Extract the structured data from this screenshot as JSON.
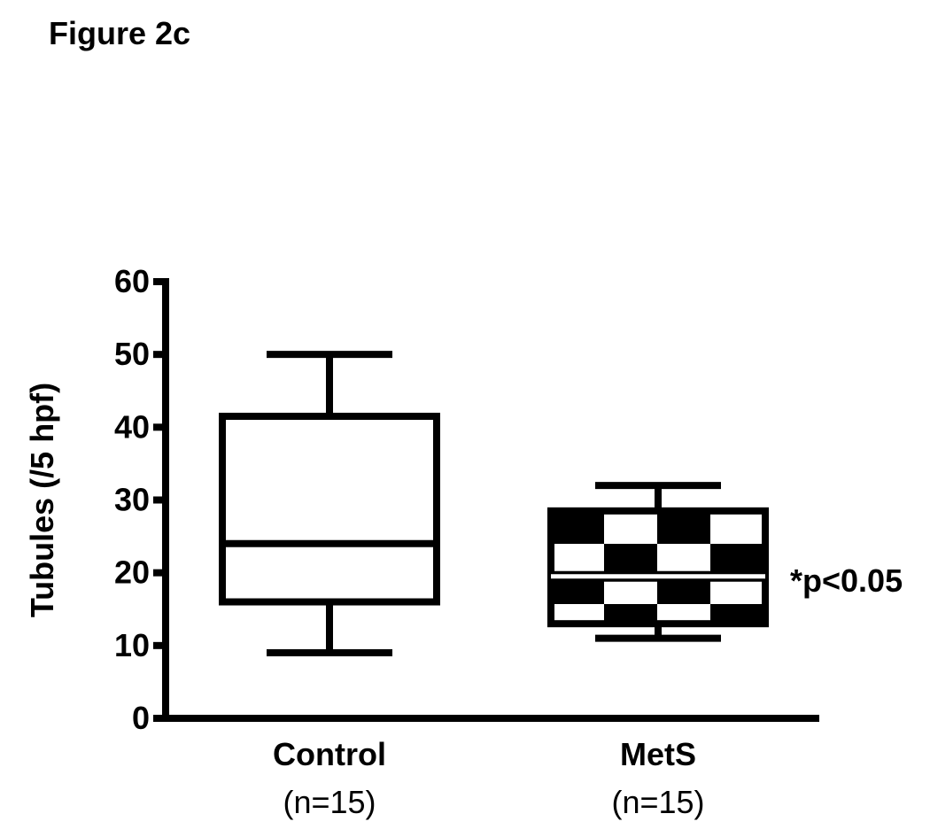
{
  "figure_label": "Figure 2c",
  "significance_label": "*p<0.05",
  "colors": {
    "ink": "#000000",
    "paper": "#ffffff"
  },
  "chart_data": {
    "type": "box",
    "title": "",
    "xlabel": "",
    "ylabel": "Tubules (/5 hpf)",
    "ylim": [
      0,
      60
    ],
    "yticks": [
      0,
      10,
      20,
      30,
      40,
      50,
      60
    ],
    "grid": false,
    "legend": "none",
    "categories": [
      "Control",
      "MetS"
    ],
    "sample_sizes": [
      "(n=15)",
      "(n=15)"
    ],
    "boxes": [
      {
        "category": "Control",
        "min": 9,
        "q1": 16,
        "median": 24,
        "q3": 41.5,
        "max": 50,
        "fill": "plain"
      },
      {
        "category": "MetS",
        "min": 11,
        "q1": 13,
        "median": 19.5,
        "q3": 28.5,
        "max": 32,
        "fill": "checkerboard"
      }
    ]
  }
}
